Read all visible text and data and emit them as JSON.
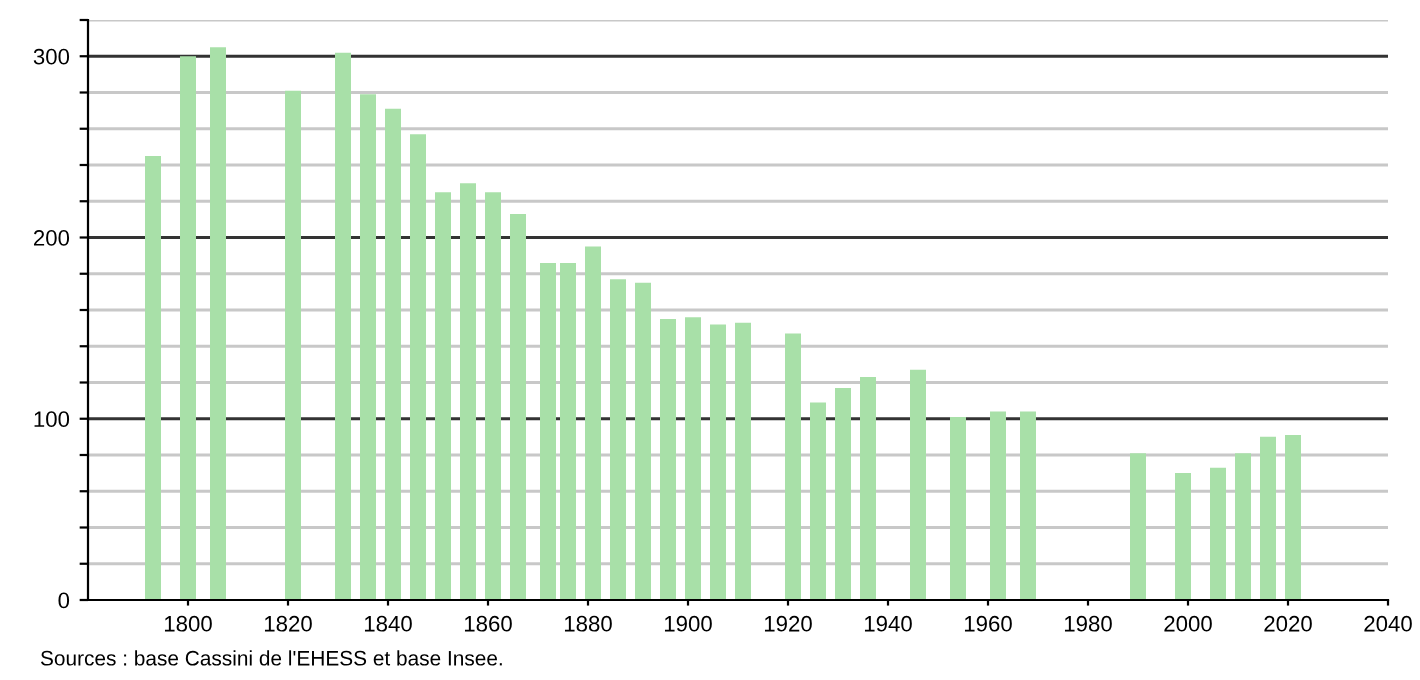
{
  "chart_data": {
    "type": "bar",
    "color": "#a8e0a8",
    "x": [
      1793,
      1800,
      1806,
      1821,
      1831,
      1836,
      1841,
      1846,
      1851,
      1856,
      1861,
      1866,
      1872,
      1876,
      1881,
      1886,
      1891,
      1896,
      1901,
      1906,
      1911,
      1921,
      1926,
      1931,
      1936,
      1946,
      1954,
      1962,
      1968,
      1990,
      1999,
      2006,
      2011,
      2016,
      2021
    ],
    "values": [
      245,
      300,
      305,
      281,
      302,
      279,
      271,
      257,
      225,
      230,
      225,
      213,
      186,
      186,
      195,
      177,
      175,
      155,
      156,
      152,
      153,
      147,
      109,
      117,
      123,
      127,
      101,
      104,
      104,
      81,
      70,
      73,
      81,
      90,
      91
    ],
    "xlim": [
      1780,
      2040
    ],
    "xticks": [
      1800,
      1820,
      1840,
      1860,
      1880,
      1900,
      1920,
      1940,
      1960,
      1980,
      2000,
      2020,
      2040
    ],
    "ylim": [
      0,
      320
    ],
    "yticks": [
      0,
      {
        "value": 20,
        "label": null
      },
      {
        "value": 40,
        "label": null
      },
      {
        "value": 60,
        "label": null
      },
      {
        "value": 80,
        "label": null
      },
      100,
      {
        "value": 120,
        "label": null
      },
      {
        "value": 140,
        "label": null
      },
      {
        "value": 160,
        "label": null
      },
      {
        "value": 180,
        "label": null
      },
      200,
      {
        "value": 220,
        "label": null
      },
      {
        "value": 240,
        "label": null
      },
      {
        "value": 260,
        "label": null
      },
      {
        "value": 280,
        "label": null
      },
      300,
      {
        "value": 320,
        "label": null
      }
    ],
    "grid": "y",
    "annotations": [
      "Sources : base Cassini de l'EHESS et base Insee."
    ]
  }
}
